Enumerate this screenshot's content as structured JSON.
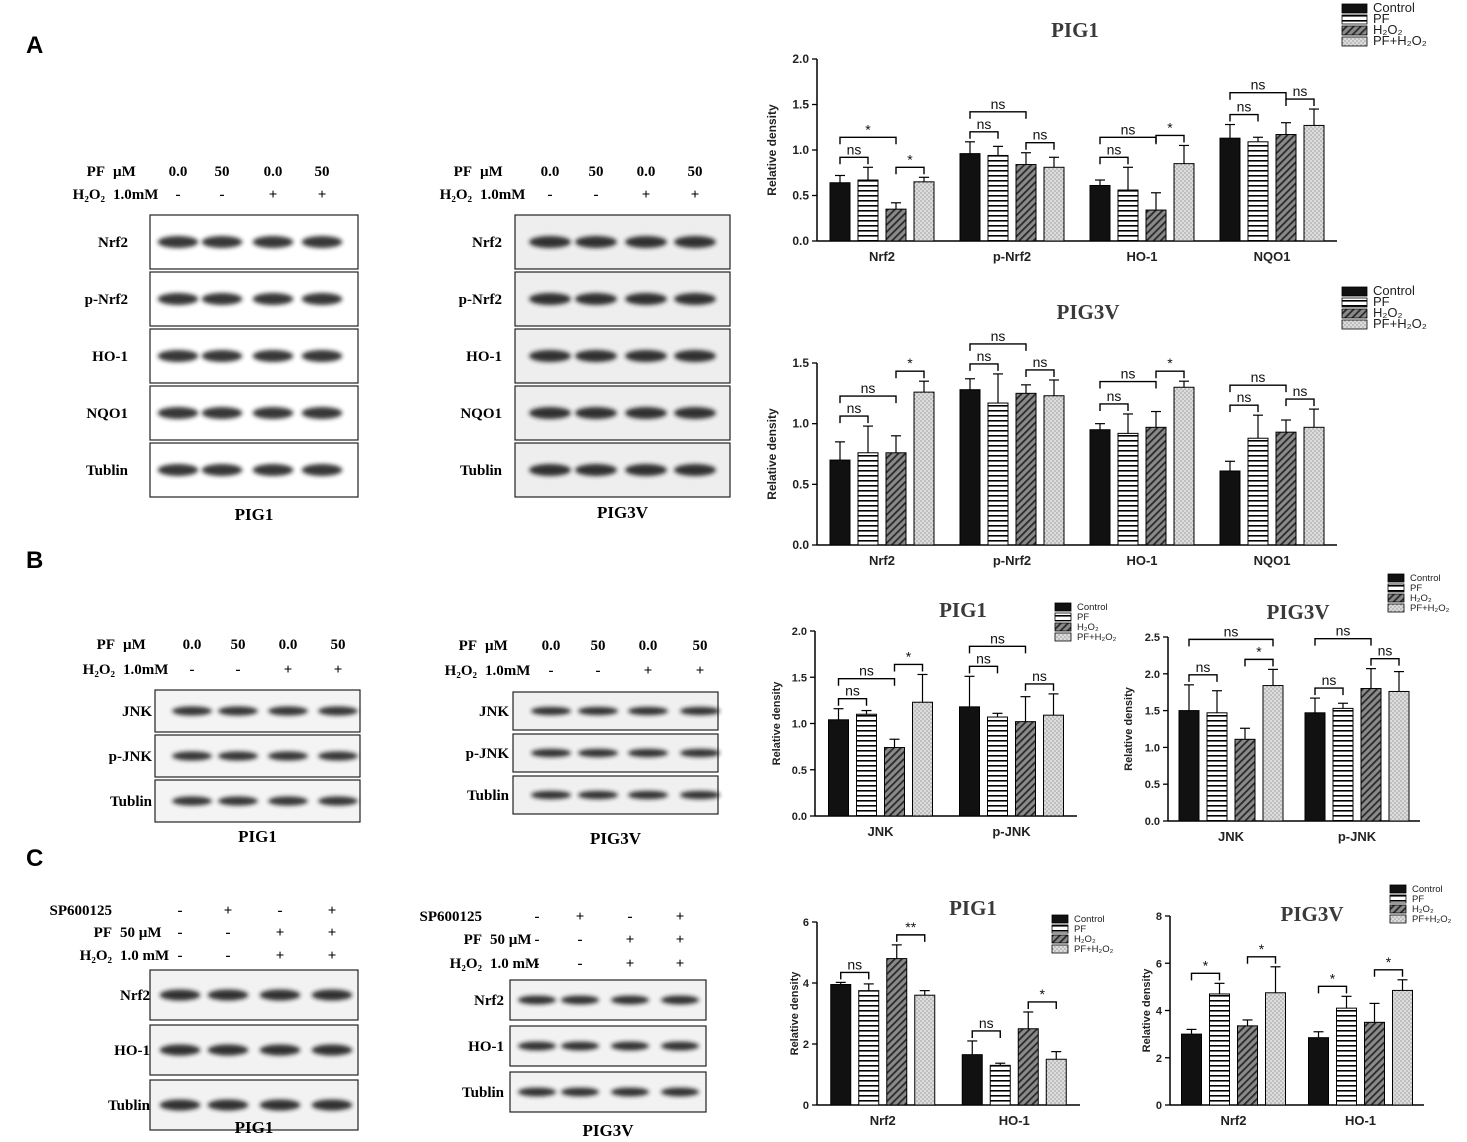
{
  "panels": {
    "A": "A",
    "B": "B",
    "C": "C"
  },
  "legend4": [
    "Control",
    "PF",
    "H₂O₂",
    "PF+H₂O₂"
  ],
  "colors": {
    "control": "#111111",
    "stripe": "#000000",
    "dark_hatch": "#555555",
    "dots": "#d9d9d9"
  },
  "blots": [
    {
      "id": "A-PIG1",
      "panel": "A",
      "caption": "PIG1",
      "treatments": [
        {
          "label": "PF",
          "unit": "µM",
          "values": [
            "0.0",
            "50",
            "0.0",
            "50"
          ]
        },
        {
          "label": "H₂O₂",
          "unit": "1.0mM",
          "values": [
            "-",
            "-",
            "+",
            "+"
          ]
        }
      ],
      "rows": [
        {
          "label": "Nrf2"
        },
        {
          "label": "p-Nrf2"
        },
        {
          "label": "HO-1"
        },
        {
          "label": "NQO1"
        },
        {
          "label": "Tublin"
        }
      ]
    },
    {
      "id": "A-PIG3V",
      "panel": "A",
      "caption": "PIG3V",
      "treatments": [
        {
          "label": "PF",
          "unit": "µM",
          "values": [
            "0.0",
            "50",
            "0.0",
            "50"
          ]
        },
        {
          "label": "H₂O₂",
          "unit": "1.0mM",
          "values": [
            "-",
            "-",
            "+",
            "+"
          ]
        }
      ],
      "rows": [
        {
          "label": "Nrf2"
        },
        {
          "label": "p-Nrf2"
        },
        {
          "label": "HO-1"
        },
        {
          "label": "NQO1"
        },
        {
          "label": "Tublin"
        }
      ]
    },
    {
      "id": "B-PIG1",
      "panel": "B",
      "caption": "PIG1",
      "treatments": [
        {
          "label": "PF",
          "unit": "µM",
          "values": [
            "0.0",
            "50",
            "0.0",
            "50"
          ]
        },
        {
          "label": "H₂O₂",
          "unit": "1.0mM",
          "values": [
            "-",
            "-",
            "+",
            "+"
          ]
        }
      ],
      "rows": [
        {
          "label": "JNK"
        },
        {
          "label": "p-JNK"
        },
        {
          "label": "Tublin"
        }
      ]
    },
    {
      "id": "B-PIG3V",
      "panel": "B",
      "caption": "PIG3V",
      "treatments": [
        {
          "label": "PF",
          "unit": "µM",
          "values": [
            "0.0",
            "50",
            "0.0",
            "50"
          ]
        },
        {
          "label": "H₂O₂",
          "unit": "1.0mM",
          "values": [
            "-",
            "-",
            "+",
            "+"
          ]
        }
      ],
      "rows": [
        {
          "label": "JNK"
        },
        {
          "label": "p-JNK"
        },
        {
          "label": "Tublin"
        }
      ]
    },
    {
      "id": "C-PIG1",
      "panel": "C",
      "caption": "PIG1",
      "treatments": [
        {
          "label": "SP600125",
          "unit": "",
          "values": [
            "-",
            "+",
            "-",
            "+"
          ]
        },
        {
          "label": "PF",
          "unit": "50 µM",
          "values": [
            "-",
            "-",
            "+",
            "+"
          ]
        },
        {
          "label": "H₂O₂",
          "unit": "1.0 mM",
          "values": [
            "-",
            "-",
            "+",
            "+"
          ]
        }
      ],
      "rows": [
        {
          "label": "Nrf2"
        },
        {
          "label": "HO-1"
        },
        {
          "label": "Tublin"
        }
      ]
    },
    {
      "id": "C-PIG3V",
      "panel": "C",
      "caption": "PIG3V",
      "treatments": [
        {
          "label": "SP600125",
          "unit": "",
          "values": [
            "-",
            "+",
            "-",
            "+"
          ]
        },
        {
          "label": "PF",
          "unit": "50 µM",
          "values": [
            "-",
            "-",
            "+",
            "+"
          ]
        },
        {
          "label": "H₂O₂",
          "unit": "1.0 mM",
          "values": [
            "-",
            "-",
            "+",
            "+"
          ]
        }
      ],
      "rows": [
        {
          "label": "Nrf2"
        },
        {
          "label": "HO-1"
        },
        {
          "label": "Tublin"
        }
      ]
    }
  ],
  "chart_data": [
    {
      "type": "bar",
      "title": "PIG1",
      "ylabel": "Relative density",
      "ylim": [
        0,
        2.0
      ],
      "yticks": [
        "0.0",
        "0.5",
        "1.0",
        "1.5",
        "2.0"
      ],
      "legend": "top-right",
      "categories": [
        "Nrf2",
        "p-Nrf2",
        "HO-1",
        "NQO1"
      ],
      "series": [
        {
          "name": "Control",
          "values": [
            0.64,
            0.96,
            0.61,
            1.13
          ],
          "errors": [
            0.08,
            0.13,
            0.06,
            0.15
          ]
        },
        {
          "name": "PF",
          "values": [
            0.67,
            0.94,
            0.56,
            1.09
          ],
          "errors": [
            0.14,
            0.1,
            0.25,
            0.05
          ]
        },
        {
          "name": "H₂O₂",
          "values": [
            0.35,
            0.84,
            0.34,
            1.17
          ],
          "errors": [
            0.07,
            0.13,
            0.19,
            0.13
          ]
        },
        {
          "name": "PF+H₂O₂",
          "values": [
            0.65,
            0.81,
            0.85,
            1.27
          ],
          "errors": [
            0.05,
            0.11,
            0.2,
            0.18
          ]
        }
      ],
      "annotations": [
        {
          "cat": 0,
          "from": 0,
          "to": 1,
          "text": "ns"
        },
        {
          "cat": 0,
          "from": 0,
          "to": 2,
          "text": "*"
        },
        {
          "cat": 0,
          "from": 2,
          "to": 3,
          "text": "*"
        },
        {
          "cat": 1,
          "from": 0,
          "to": 1,
          "text": "ns"
        },
        {
          "cat": 1,
          "from": 0,
          "to": 2,
          "text": "ns"
        },
        {
          "cat": 1,
          "from": 2,
          "to": 3,
          "text": "ns"
        },
        {
          "cat": 2,
          "from": 0,
          "to": 1,
          "text": "ns"
        },
        {
          "cat": 2,
          "from": 0,
          "to": 2,
          "text": "ns"
        },
        {
          "cat": 2,
          "from": 2,
          "to": 3,
          "text": "*"
        },
        {
          "cat": 3,
          "from": 0,
          "to": 1,
          "text": "ns"
        },
        {
          "cat": 3,
          "from": 0,
          "to": 2,
          "text": "ns"
        },
        {
          "cat": 3,
          "from": 2,
          "to": 3,
          "text": "ns"
        }
      ]
    },
    {
      "type": "bar",
      "title": "PIG3V",
      "ylabel": "Relative density",
      "ylim": [
        0,
        1.5
      ],
      "yticks": [
        "0.0",
        "0.5",
        "1.0",
        "1.5"
      ],
      "legend": "top-right",
      "categories": [
        "Nrf2",
        "p-Nrf2",
        "HO-1",
        "NQO1"
      ],
      "series": [
        {
          "name": "Control",
          "values": [
            0.7,
            1.28,
            0.95,
            0.61
          ],
          "errors": [
            0.15,
            0.09,
            0.05,
            0.08
          ]
        },
        {
          "name": "PF",
          "values": [
            0.76,
            1.17,
            0.92,
            0.88
          ],
          "errors": [
            0.22,
            0.24,
            0.16,
            0.19
          ]
        },
        {
          "name": "H₂O₂",
          "values": [
            0.76,
            1.25,
            0.97,
            0.93
          ],
          "errors": [
            0.14,
            0.07,
            0.13,
            0.1
          ]
        },
        {
          "name": "PF+H₂O₂",
          "values": [
            1.26,
            1.23,
            1.3,
            0.97
          ],
          "errors": [
            0.09,
            0.13,
            0.05,
            0.15
          ]
        }
      ],
      "annotations": [
        {
          "cat": 0,
          "from": 0,
          "to": 1,
          "text": "ns"
        },
        {
          "cat": 0,
          "from": 0,
          "to": 2,
          "text": "ns"
        },
        {
          "cat": 0,
          "from": 2,
          "to": 3,
          "text": "*"
        },
        {
          "cat": 1,
          "from": 0,
          "to": 1,
          "text": "ns"
        },
        {
          "cat": 1,
          "from": 0,
          "to": 2,
          "text": "ns"
        },
        {
          "cat": 1,
          "from": 2,
          "to": 3,
          "text": "ns"
        },
        {
          "cat": 2,
          "from": 0,
          "to": 1,
          "text": "ns"
        },
        {
          "cat": 2,
          "from": 0,
          "to": 2,
          "text": "ns"
        },
        {
          "cat": 2,
          "from": 2,
          "to": 3,
          "text": "*"
        },
        {
          "cat": 3,
          "from": 0,
          "to": 1,
          "text": "ns"
        },
        {
          "cat": 3,
          "from": 0,
          "to": 2,
          "text": "ns"
        },
        {
          "cat": 3,
          "from": 2,
          "to": 3,
          "text": "ns"
        }
      ]
    },
    {
      "type": "bar",
      "title": "PIG1",
      "ylabel": "Relative density",
      "ylim": [
        0,
        2.0
      ],
      "yticks": [
        "0.0",
        "0.5",
        "1.0",
        "1.5",
        "2.0"
      ],
      "legend": "top-right",
      "categories": [
        "JNK",
        "p-JNK"
      ],
      "series": [
        {
          "name": "Control",
          "values": [
            1.04,
            1.18
          ],
          "errors": [
            0.12,
            0.33
          ]
        },
        {
          "name": "PF",
          "values": [
            1.1,
            1.07
          ],
          "errors": [
            0.04,
            0.04
          ]
        },
        {
          "name": "H₂O₂",
          "values": [
            0.74,
            1.02
          ],
          "errors": [
            0.09,
            0.27
          ]
        },
        {
          "name": "PF+H₂O₂",
          "values": [
            1.23,
            1.09
          ],
          "errors": [
            0.3,
            0.23
          ]
        }
      ],
      "annotations": [
        {
          "cat": 0,
          "from": 0,
          "to": 1,
          "text": "ns"
        },
        {
          "cat": 0,
          "from": 0,
          "to": 2,
          "text": "ns"
        },
        {
          "cat": 0,
          "from": 2,
          "to": 3,
          "text": "*"
        },
        {
          "cat": 1,
          "from": 0,
          "to": 1,
          "text": "ns"
        },
        {
          "cat": 1,
          "from": 0,
          "to": 2,
          "text": "ns"
        },
        {
          "cat": 1,
          "from": 2,
          "to": 3,
          "text": "ns"
        }
      ]
    },
    {
      "type": "bar",
      "title": "PIG3V",
      "ylabel": "Relative density",
      "ylim": [
        0,
        2.5
      ],
      "yticks": [
        "0.0",
        "0.5",
        "1.0",
        "1.5",
        "2.0",
        "2.5"
      ],
      "legend": "top-right",
      "categories": [
        "JNK",
        "p-JNK"
      ],
      "series": [
        {
          "name": "Control",
          "values": [
            1.5,
            1.47
          ],
          "errors": [
            0.35,
            0.2
          ]
        },
        {
          "name": "PF",
          "values": [
            1.47,
            1.53
          ],
          "errors": [
            0.3,
            0.07
          ]
        },
        {
          "name": "H₂O₂",
          "values": [
            1.11,
            1.8
          ],
          "errors": [
            0.15,
            0.27
          ]
        },
        {
          "name": "PF+H₂O₂",
          "values": [
            1.84,
            1.76
          ],
          "errors": [
            0.22,
            0.27
          ]
        }
      ],
      "annotations": [
        {
          "cat": 0,
          "from": 0,
          "to": 1,
          "text": "ns"
        },
        {
          "cat": 0,
          "from": 0,
          "to": 3,
          "text": "ns"
        },
        {
          "cat": 0,
          "from": 2,
          "to": 3,
          "text": "*"
        },
        {
          "cat": 1,
          "from": 0,
          "to": 1,
          "text": "ns"
        },
        {
          "cat": 1,
          "from": 0,
          "to": 2,
          "text": "ns"
        },
        {
          "cat": 1,
          "from": 2,
          "to": 3,
          "text": "ns"
        }
      ]
    },
    {
      "type": "bar",
      "title": "PIG1",
      "ylabel": "Relative density",
      "ylim": [
        0,
        6
      ],
      "yticks": [
        "0",
        "2",
        "4",
        "6"
      ],
      "legend": "top-right",
      "categories": [
        "Nrf2",
        "HO-1"
      ],
      "series": [
        {
          "name": "Control",
          "values": [
            3.95,
            1.65
          ],
          "errors": [
            0.07,
            0.45
          ]
        },
        {
          "name": "PF",
          "values": [
            3.75,
            1.3
          ],
          "errors": [
            0.22,
            0.07
          ]
        },
        {
          "name": "H₂O₂",
          "values": [
            4.8,
            2.5
          ],
          "errors": [
            0.45,
            0.55
          ]
        },
        {
          "name": "PF+H₂O₂",
          "values": [
            3.6,
            1.5
          ],
          "errors": [
            0.15,
            0.25
          ]
        }
      ],
      "annotations": [
        {
          "cat": 0,
          "from": 0,
          "to": 1,
          "text": "ns"
        },
        {
          "cat": 0,
          "from": 2,
          "to": 3,
          "text": "**"
        },
        {
          "cat": 1,
          "from": 0,
          "to": 1,
          "text": "ns"
        },
        {
          "cat": 1,
          "from": 2,
          "to": 3,
          "text": "*"
        }
      ]
    },
    {
      "type": "bar",
      "title": "PIG3V",
      "ylabel": "Relative density",
      "ylim": [
        0,
        8
      ],
      "yticks": [
        "0",
        "2",
        "4",
        "6",
        "8"
      ],
      "legend": "top-right",
      "categories": [
        "Nrf2",
        "HO-1"
      ],
      "series": [
        {
          "name": "Control",
          "values": [
            3.0,
            2.85
          ],
          "errors": [
            0.2,
            0.25
          ]
        },
        {
          "name": "PF",
          "values": [
            4.7,
            4.1
          ],
          "errors": [
            0.45,
            0.5
          ]
        },
        {
          "name": "H₂O₂",
          "values": [
            3.35,
            3.5
          ],
          "errors": [
            0.25,
            0.8
          ]
        },
        {
          "name": "PF+H₂O₂",
          "values": [
            4.75,
            4.85
          ],
          "errors": [
            1.1,
            0.45
          ]
        }
      ],
      "annotations": [
        {
          "cat": 0,
          "from": 0,
          "to": 1,
          "text": "*"
        },
        {
          "cat": 0,
          "from": 2,
          "to": 3,
          "text": "*"
        },
        {
          "cat": 1,
          "from": 0,
          "to": 1,
          "text": "*"
        },
        {
          "cat": 1,
          "from": 2,
          "to": 3,
          "text": "*"
        }
      ]
    }
  ]
}
